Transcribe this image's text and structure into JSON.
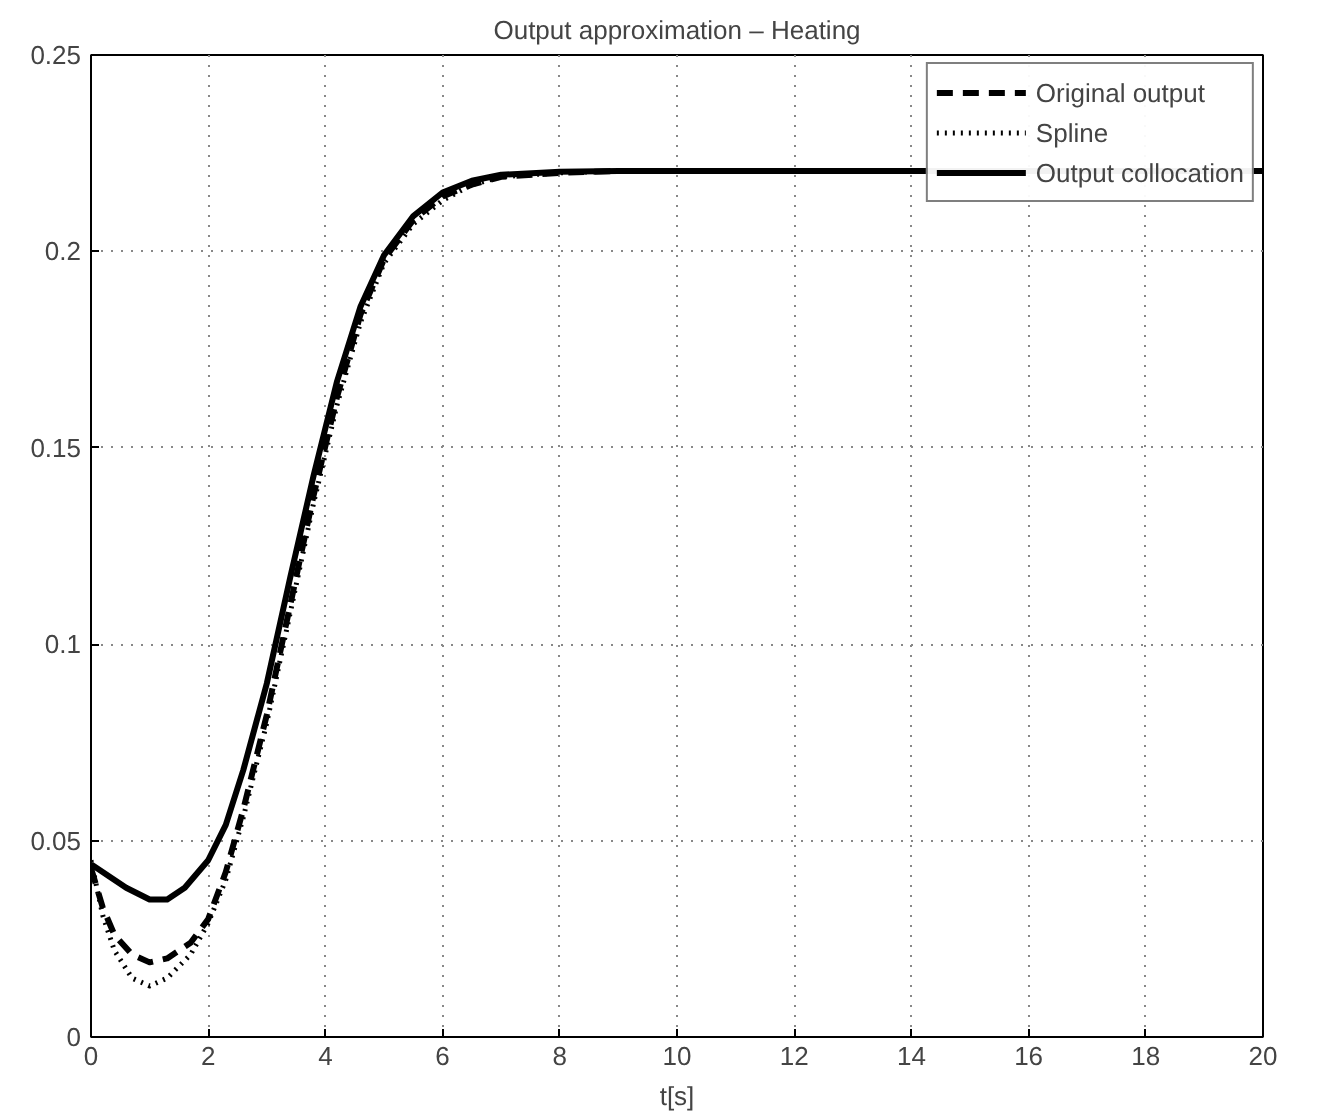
{
  "chart_data": {
    "type": "line",
    "title": "Output approximation – Heating",
    "xlabel": "t[s]",
    "xlim": [
      0,
      20
    ],
    "ylim": [
      0,
      0.25
    ],
    "xticks": [
      0,
      2,
      4,
      6,
      8,
      10,
      12,
      14,
      16,
      18,
      20
    ],
    "yticks": [
      0,
      0.05,
      0.1,
      0.15,
      0.2,
      0.25
    ],
    "grid": true,
    "legend": "top right",
    "series": [
      {
        "name": "Original output",
        "color": "#000000",
        "line_style": "dashed",
        "x": [
          0,
          0.2,
          0.4,
          0.7,
          1.0,
          1.3,
          1.7,
          2.0,
          2.3,
          2.6,
          3.0,
          3.4,
          3.8,
          4.2,
          4.6,
          5.0,
          5.5,
          6.0,
          6.5,
          7.0,
          8.0,
          9.0,
          10,
          12,
          14,
          16,
          20
        ],
        "values": [
          0.043,
          0.033,
          0.026,
          0.021,
          0.019,
          0.02,
          0.024,
          0.03,
          0.042,
          0.058,
          0.082,
          0.11,
          0.138,
          0.163,
          0.184,
          0.198,
          0.208,
          0.214,
          0.217,
          0.219,
          0.22,
          0.2205,
          0.2205,
          0.2205,
          0.2205,
          0.2205,
          0.2205
        ]
      },
      {
        "name": "Spline",
        "color": "#000000",
        "line_style": "dotted",
        "x": [
          0,
          0.2,
          0.4,
          0.7,
          1.0,
          1.3,
          1.7,
          2.0,
          2.3,
          2.6,
          3.0,
          3.4,
          3.8,
          4.2,
          4.6,
          5.0,
          5.5,
          6.0,
          6.5,
          7.0,
          8.0,
          9.0,
          10,
          12,
          14,
          16,
          20
        ],
        "values": [
          0.045,
          0.031,
          0.022,
          0.015,
          0.013,
          0.015,
          0.021,
          0.029,
          0.04,
          0.056,
          0.08,
          0.108,
          0.136,
          0.161,
          0.182,
          0.197,
          0.207,
          0.213,
          0.217,
          0.219,
          0.22,
          0.2205,
          0.2205,
          0.2205,
          0.2205,
          0.2205,
          0.2205
        ]
      },
      {
        "name": "Output collocation",
        "color": "#000000",
        "line_style": "solid",
        "x": [
          0,
          0.3,
          0.6,
          1.0,
          1.3,
          1.6,
          2.0,
          2.3,
          2.6,
          3.0,
          3.4,
          3.8,
          4.2,
          4.6,
          5.0,
          5.5,
          6.0,
          6.5,
          7.0,
          8.0,
          9.0,
          10,
          12,
          14,
          16,
          20
        ],
        "values": [
          0.044,
          0.041,
          0.038,
          0.035,
          0.035,
          0.038,
          0.045,
          0.054,
          0.068,
          0.09,
          0.117,
          0.143,
          0.167,
          0.186,
          0.199,
          0.209,
          0.215,
          0.218,
          0.2195,
          0.2203,
          0.2205,
          0.2205,
          0.2205,
          0.2205,
          0.2205,
          0.2205
        ]
      }
    ]
  }
}
